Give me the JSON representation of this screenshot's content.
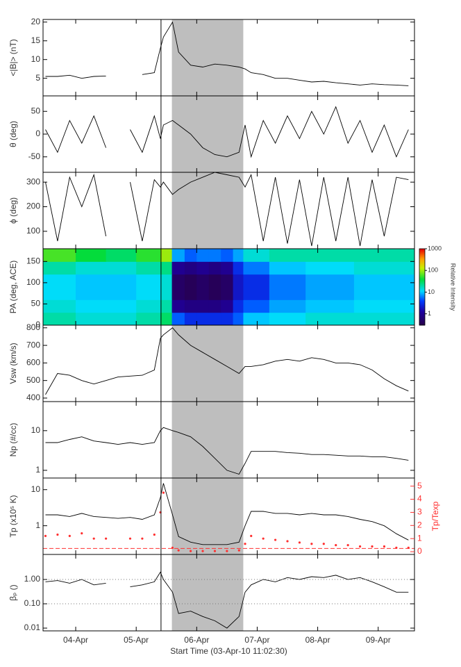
{
  "chart_data": [
    {
      "type": "line",
      "ylabel": "<|B|> (nT)",
      "ylim": [
        0.3,
        20.7
      ],
      "yticks": [
        5,
        10,
        15,
        20
      ],
      "vline": 5.41,
      "shade": [
        5.59,
        6.77
      ],
      "x": [
        3.5,
        3.7,
        3.9,
        4.1,
        4.3,
        4.5,
        4.7,
        4.9,
        5.1,
        5.3,
        5.4,
        5.45,
        5.6,
        5.7,
        5.9,
        6.1,
        6.3,
        6.5,
        6.7,
        6.8,
        6.9,
        7.1,
        7.3,
        7.5,
        7.7,
        7.9,
        8.1,
        8.3,
        8.5,
        8.7,
        8.9,
        9.1,
        9.3,
        9.5
      ],
      "series": [
        {
          "color": "#000000",
          "values": [
            5.5,
            5.5,
            5.8,
            5,
            5.5,
            5.6,
            null,
            null,
            6,
            6.5,
            13,
            16,
            20,
            12,
            8.5,
            8,
            8.8,
            8.5,
            8,
            7.5,
            6.5,
            6,
            5,
            5,
            4.5,
            4,
            4.2,
            3.8,
            3.5,
            3.2,
            3.5,
            3.3,
            3.2,
            3
          ]
        }
      ]
    },
    {
      "type": "line",
      "ylabel": "θ (deg)",
      "ylim": [
        -84,
        84
      ],
      "yticks": [
        -50,
        0,
        50
      ],
      "vline": 5.41,
      "shade": [
        5.59,
        6.77
      ],
      "x": [
        3.5,
        3.7,
        3.9,
        4.1,
        4.3,
        4.5,
        4.7,
        4.9,
        5.1,
        5.3,
        5.4,
        5.45,
        5.6,
        5.7,
        5.9,
        6.1,
        6.3,
        6.5,
        6.7,
        6.8,
        6.9,
        7.1,
        7.3,
        7.5,
        7.7,
        7.9,
        8.1,
        8.3,
        8.5,
        8.7,
        8.9,
        9.1,
        9.3,
        9.5
      ],
      "series": [
        {
          "color": "#000000",
          "values": [
            10,
            -40,
            30,
            -20,
            40,
            -30,
            null,
            10,
            -40,
            40,
            -10,
            20,
            30,
            20,
            0,
            -30,
            -45,
            -50,
            -40,
            20,
            -50,
            30,
            -20,
            40,
            -10,
            50,
            0,
            60,
            -20,
            30,
            -40,
            20,
            -50,
            10
          ]
        }
      ]
    },
    {
      "type": "line",
      "ylabel": "ϕ (deg)",
      "ylim": [
        29,
        340
      ],
      "yticks": [
        100,
        200,
        300
      ],
      "vline": 5.41,
      "shade": [
        5.59,
        6.77
      ],
      "x": [
        3.5,
        3.7,
        3.9,
        4.1,
        4.3,
        4.5,
        4.7,
        4.9,
        5.1,
        5.3,
        5.4,
        5.45,
        5.6,
        5.7,
        5.9,
        6.1,
        6.3,
        6.5,
        6.7,
        6.8,
        6.9,
        7.1,
        7.3,
        7.5,
        7.7,
        7.9,
        8.1,
        8.3,
        8.5,
        8.7,
        8.9,
        9.1,
        9.3,
        9.5
      ],
      "series": [
        {
          "color": "#000000",
          "values": [
            300,
            60,
            320,
            200,
            330,
            80,
            null,
            300,
            60,
            310,
            280,
            300,
            250,
            270,
            300,
            320,
            340,
            330,
            320,
            280,
            330,
            60,
            320,
            50,
            310,
            40,
            320,
            60,
            320,
            40,
            310,
            80,
            320,
            310
          ]
        }
      ]
    },
    {
      "type": "heatmap",
      "ylabel": "PA (deg, ACE)",
      "ylim": [
        0,
        180
      ],
      "yticks": [
        0,
        50,
        100,
        150
      ],
      "vline": 5.41,
      "xbins": [
        3.46,
        4,
        4.5,
        5,
        5.4,
        5.59,
        5.8,
        6.0,
        6.2,
        6.4,
        6.6,
        6.77,
        7.2,
        7.8,
        8.6,
        9.6
      ],
      "ybins": [
        0,
        30,
        60,
        90,
        120,
        150,
        180
      ],
      "values": [
        [
          20,
          15,
          15,
          20,
          30,
          5,
          3,
          3,
          3,
          3,
          5,
          10,
          12,
          15,
          15
        ],
        [
          15,
          12,
          12,
          15,
          20,
          1,
          0.8,
          0.8,
          0.8,
          1,
          3,
          5,
          8,
          10,
          12
        ],
        [
          12,
          10,
          10,
          12,
          15,
          0.5,
          0.4,
          0.5,
          0.4,
          0.5,
          2,
          3,
          6,
          8,
          10
        ],
        [
          12,
          10,
          10,
          12,
          15,
          0.5,
          0.4,
          0.5,
          0.4,
          0.5,
          2,
          3,
          6,
          8,
          10
        ],
        [
          20,
          15,
          15,
          20,
          25,
          1,
          0.8,
          1,
          0.8,
          1,
          3,
          6,
          10,
          12,
          15
        ],
        [
          60,
          40,
          30,
          50,
          100,
          8,
          5,
          6,
          6,
          5,
          8,
          15,
          20,
          20,
          20
        ]
      ],
      "colorbar": {
        "label": "Relative Intensity",
        "lim": [
          0.3,
          1000
        ],
        "ticks": [
          1,
          10,
          100,
          1000
        ]
      }
    },
    {
      "type": "line",
      "ylabel": "Vsw (km/s)",
      "ylim": [
        380,
        815
      ],
      "yticks": [
        400,
        500,
        600,
        700,
        800
      ],
      "vline": 5.41,
      "shade": [
        5.59,
        6.77
      ],
      "x": [
        3.5,
        3.7,
        3.9,
        4.1,
        4.3,
        4.5,
        4.7,
        4.9,
        5.1,
        5.3,
        5.4,
        5.45,
        5.6,
        5.7,
        5.9,
        6.1,
        6.3,
        6.5,
        6.7,
        6.8,
        6.9,
        7.1,
        7.3,
        7.5,
        7.7,
        7.9,
        8.1,
        8.3,
        8.5,
        8.7,
        8.9,
        9.1,
        9.3,
        9.5
      ],
      "series": [
        {
          "color": "#000000",
          "values": [
            420,
            540,
            530,
            500,
            480,
            500,
            520,
            525,
            530,
            560,
            740,
            760,
            800,
            760,
            700,
            660,
            620,
            580,
            540,
            580,
            580,
            590,
            610,
            620,
            610,
            630,
            620,
            600,
            600,
            590,
            560,
            510,
            470,
            440
          ]
        }
      ]
    },
    {
      "type": "line",
      "ylabel": "Np (#/cc)",
      "log": true,
      "ylim": [
        0.64,
        54
      ],
      "yticks": [
        1,
        10
      ],
      "vline": 5.41,
      "shade": [
        5.59,
        6.77
      ],
      "x": [
        3.5,
        3.7,
        3.9,
        4.1,
        4.3,
        4.5,
        4.7,
        4.9,
        5.1,
        5.3,
        5.4,
        5.45,
        5.6,
        5.7,
        5.9,
        6.1,
        6.3,
        6.5,
        6.7,
        6.8,
        6.9,
        7.1,
        7.3,
        7.5,
        7.7,
        7.9,
        8.1,
        8.3,
        8.5,
        8.7,
        8.9,
        9.1,
        9.3,
        9.5
      ],
      "series": [
        {
          "color": "#000000",
          "values": [
            5,
            5,
            6,
            7,
            5.5,
            5,
            4.5,
            5,
            4.5,
            5,
            10,
            12,
            10,
            9,
            7,
            4,
            2,
            1,
            0.8,
            1.5,
            3,
            3,
            3,
            2.8,
            2.7,
            2.5,
            2.5,
            2.4,
            2.3,
            2.3,
            2.2,
            2.2,
            2,
            1.8
          ]
        }
      ]
    },
    {
      "type": "line",
      "ylabel": "Tp (x10⁵ K)",
      "y2label": "Tp/Texp",
      "y2color": "#ff3030",
      "log": true,
      "ylim": [
        0.16,
        21
      ],
      "yticks": [
        1,
        10
      ],
      "y2lim": [
        -0.21,
        5.62
      ],
      "y2ticks": [
        0,
        1,
        2,
        3,
        4,
        5
      ],
      "y2line": 0.25,
      "vline": 5.41,
      "shade": [
        5.59,
        6.77
      ],
      "x": [
        3.5,
        3.7,
        3.9,
        4.1,
        4.3,
        4.5,
        4.7,
        4.9,
        5.1,
        5.3,
        5.4,
        5.45,
        5.6,
        5.7,
        5.9,
        6.1,
        6.3,
        6.5,
        6.7,
        6.8,
        6.9,
        7.1,
        7.3,
        7.5,
        7.7,
        7.9,
        8.1,
        8.3,
        8.5,
        8.7,
        8.9,
        9.1,
        9.3,
        9.5
      ],
      "series": [
        {
          "color": "#000000",
          "values": [
            2,
            2,
            1.8,
            2.2,
            1.8,
            1.7,
            1.6,
            1.7,
            1.5,
            2,
            6,
            15,
            2,
            0.5,
            0.35,
            0.3,
            0.3,
            0.3,
            0.35,
            1,
            2.5,
            2.5,
            2.2,
            2.2,
            2,
            2.2,
            2,
            2,
            1.8,
            1.5,
            1.3,
            1,
            0.6,
            0.4
          ]
        },
        {
          "color": "#ff3030",
          "axis": "y2",
          "mode": "markers",
          "values": [
            1.2,
            1.3,
            1.2,
            1.4,
            1.0,
            1.0,
            null,
            1.0,
            1.0,
            1.3,
            3,
            4.5,
            0.3,
            0.1,
            0.05,
            0.05,
            0.05,
            0.05,
            0.1,
            0.6,
            1.2,
            1.0,
            0.9,
            0.8,
            0.7,
            0.6,
            0.6,
            0.5,
            0.5,
            0.4,
            0.4,
            0.4,
            0.3,
            0.3
          ]
        }
      ]
    },
    {
      "type": "line",
      "ylabel": "βₚ ()",
      "log": true,
      "ylim": [
        0.0077,
        10.7
      ],
      "yticks": [
        0.01,
        {
          "value": 0.1,
          "label": "0.10"
        },
        {
          "value": 1,
          "label": "1.00"
        }
      ],
      "hlines": [
        0.1,
        1
      ],
      "vline": 5.41,
      "shade": [
        5.59,
        6.77
      ],
      "xlim": [
        3.46,
        9.6
      ],
      "xticks": [
        {
          "value": 4,
          "label": "04-Apr"
        },
        {
          "value": 5,
          "label": "05-Apr"
        },
        {
          "value": 6,
          "label": "06-Apr"
        },
        {
          "value": 7,
          "label": "07-Apr"
        },
        {
          "value": 8,
          "label": "08-Apr"
        },
        {
          "value": 9,
          "label": "09-Apr"
        }
      ],
      "xlabel": "Start Time (03-Apr-10 11:02:30)",
      "x": [
        3.5,
        3.7,
        3.9,
        4.1,
        4.3,
        4.5,
        4.7,
        4.9,
        5.1,
        5.3,
        5.4,
        5.45,
        5.6,
        5.7,
        5.9,
        6.1,
        6.3,
        6.5,
        6.7,
        6.8,
        6.9,
        7.1,
        7.3,
        7.5,
        7.7,
        7.9,
        8.1,
        8.3,
        8.5,
        8.7,
        8.9,
        9.1,
        9.3,
        9.5
      ],
      "series": [
        {
          "color": "#000000",
          "values": [
            0.8,
            0.9,
            0.7,
            1.0,
            0.6,
            0.7,
            null,
            0.5,
            0.6,
            0.8,
            2,
            1,
            0.3,
            0.04,
            0.05,
            0.03,
            0.02,
            0.01,
            0.03,
            0.3,
            0.6,
            1.0,
            0.8,
            1.2,
            1.0,
            1.3,
            1.2,
            1.5,
            1.0,
            1.2,
            0.8,
            0.5,
            0.3,
            0.3
          ]
        }
      ]
    }
  ]
}
